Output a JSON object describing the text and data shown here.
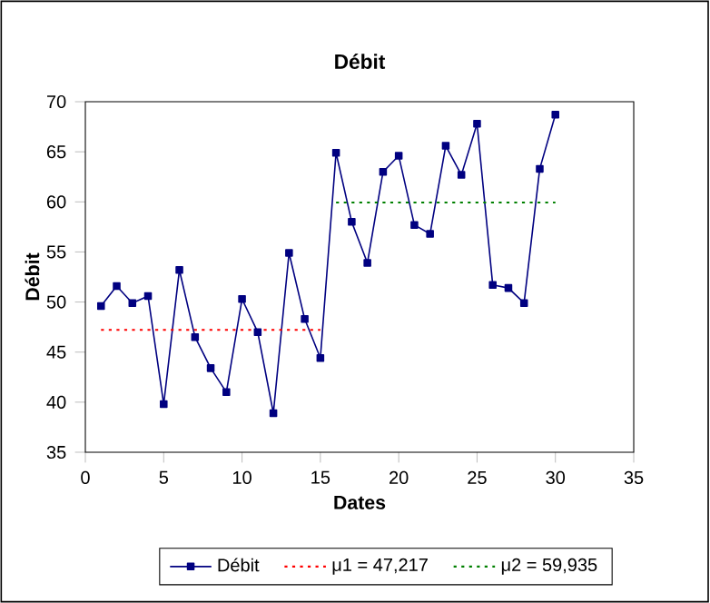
{
  "chart_data": {
    "type": "line",
    "title": "Débit",
    "xlabel": "Dates",
    "ylabel": "Débit",
    "xlim": [
      0,
      35
    ],
    "xticks": [
      0,
      5,
      10,
      15,
      20,
      25,
      30,
      35
    ],
    "ylim": [
      35,
      70
    ],
    "yticks": [
      35,
      40,
      45,
      50,
      55,
      60,
      65,
      70
    ],
    "legend": "bottom",
    "grid": false,
    "series": [
      {
        "name": "Débit",
        "color": "#000080",
        "marker": "square",
        "line_style": "solid",
        "x": [
          1,
          2,
          3,
          4,
          5,
          6,
          7,
          8,
          9,
          10,
          11,
          12,
          13,
          14,
          15,
          16,
          17,
          18,
          19,
          20,
          21,
          22,
          23,
          24,
          25,
          26,
          27,
          28,
          29,
          30
        ],
        "values": [
          49.6,
          51.6,
          49.9,
          50.6,
          39.8,
          53.2,
          46.5,
          43.4,
          41.0,
          50.3,
          47.0,
          38.9,
          54.9,
          48.3,
          44.4,
          64.9,
          58.0,
          53.9,
          63.0,
          64.6,
          57.7,
          56.8,
          65.6,
          62.7,
          67.8,
          51.7,
          51.4,
          49.9,
          63.3,
          68.7
        ]
      },
      {
        "name": "μ1 = 47,217",
        "color": "#ff0000",
        "marker": "none",
        "line_style": "dotted",
        "x": [
          1,
          15
        ],
        "values": [
          47.217,
          47.217
        ]
      },
      {
        "name": "μ2 = 59,935",
        "color": "#008000",
        "marker": "none",
        "line_style": "dotted",
        "x": [
          16,
          30
        ],
        "values": [
          59.935,
          59.935
        ]
      }
    ]
  }
}
